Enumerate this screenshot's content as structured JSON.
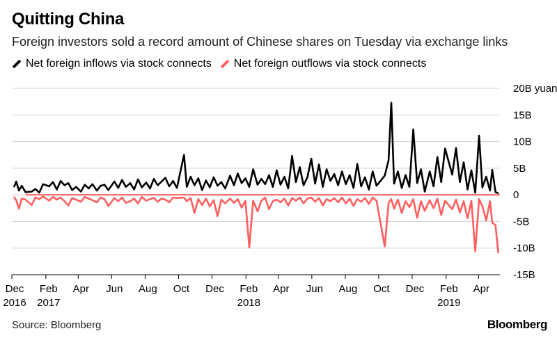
{
  "header": {
    "title": "Quitting China",
    "subtitle": "Foreign investors sold a record amount of Chinese shares on Tuesday via exchange links"
  },
  "footer": {
    "source": "Source: Bloomberg",
    "brand": "Bloomberg"
  },
  "chart_data": {
    "type": "line",
    "title": "Quitting China",
    "subtitle": "Foreign investors sold a record amount of Chinese shares on Tuesday via exchange links",
    "x_range": [
      "2016-12-01",
      "2019-05-10"
    ],
    "ylim": [
      -15,
      20
    ],
    "y_ticks": [
      {
        "value": 20,
        "label": "20B yuan"
      },
      {
        "value": 15,
        "label": "15B"
      },
      {
        "value": 10,
        "label": "10B"
      },
      {
        "value": 5,
        "label": "5B"
      },
      {
        "value": 0,
        "label": "0"
      },
      {
        "value": -5,
        "label": "-5B"
      },
      {
        "value": -10,
        "label": "-10B"
      },
      {
        "value": -15,
        "label": "-15B"
      }
    ],
    "x_ticks": [
      {
        "date": "2016-12-01",
        "label": "Dec",
        "year": "2016"
      },
      {
        "date": "2017-02-01",
        "label": "Feb",
        "year": "2017"
      },
      {
        "date": "2017-04-01",
        "label": "Apr",
        "year": ""
      },
      {
        "date": "2017-06-01",
        "label": "Jun",
        "year": ""
      },
      {
        "date": "2017-08-01",
        "label": "Aug",
        "year": ""
      },
      {
        "date": "2017-10-01",
        "label": "Oct",
        "year": ""
      },
      {
        "date": "2017-12-01",
        "label": "Dec",
        "year": ""
      },
      {
        "date": "2018-02-01",
        "label": "Feb",
        "year": "2018"
      },
      {
        "date": "2018-04-01",
        "label": "Apr",
        "year": ""
      },
      {
        "date": "2018-06-01",
        "label": "Jun",
        "year": ""
      },
      {
        "date": "2018-08-01",
        "label": "Aug",
        "year": ""
      },
      {
        "date": "2018-10-01",
        "label": "Oct",
        "year": ""
      },
      {
        "date": "2018-12-01",
        "label": "Dec",
        "year": ""
      },
      {
        "date": "2019-02-01",
        "label": "Feb",
        "year": "2019"
      },
      {
        "date": "2019-04-01",
        "label": "Apr",
        "year": ""
      }
    ],
    "grid": true,
    "legend_placement": "top-left",
    "series": [
      {
        "name": "Net foreign inflows via stock connects",
        "color": "#000000",
        "points": [
          [
            "2016-12-05",
            1.5
          ],
          [
            "2016-12-09",
            2.5
          ],
          [
            "2016-12-14",
            0.8
          ],
          [
            "2016-12-19",
            1.7
          ],
          [
            "2016-12-26",
            0.5
          ],
          [
            "2017-01-06",
            0.6
          ],
          [
            "2017-01-13",
            1.1
          ],
          [
            "2017-01-20",
            0.4
          ],
          [
            "2017-01-27",
            2.0
          ],
          [
            "2017-02-07",
            1.6
          ],
          [
            "2017-02-14",
            2.4
          ],
          [
            "2017-02-21",
            1.0
          ],
          [
            "2017-02-28",
            2.6
          ],
          [
            "2017-03-07",
            1.8
          ],
          [
            "2017-03-14",
            2.2
          ],
          [
            "2017-03-21",
            0.9
          ],
          [
            "2017-03-28",
            1.5
          ],
          [
            "2017-04-06",
            0.6
          ],
          [
            "2017-04-13",
            1.9
          ],
          [
            "2017-04-20",
            1.2
          ],
          [
            "2017-04-27",
            2.0
          ],
          [
            "2017-05-05",
            0.8
          ],
          [
            "2017-05-12",
            1.7
          ],
          [
            "2017-05-19",
            1.9
          ],
          [
            "2017-05-26",
            0.9
          ],
          [
            "2017-06-06",
            2.5
          ],
          [
            "2017-06-13",
            1.3
          ],
          [
            "2017-06-20",
            2.8
          ],
          [
            "2017-06-27",
            1.5
          ],
          [
            "2017-07-05",
            2.2
          ],
          [
            "2017-07-12",
            1.0
          ],
          [
            "2017-07-19",
            2.9
          ],
          [
            "2017-07-26",
            1.4
          ],
          [
            "2017-08-03",
            2.3
          ],
          [
            "2017-08-10",
            1.2
          ],
          [
            "2017-08-17",
            3.0
          ],
          [
            "2017-08-24",
            1.8
          ],
          [
            "2017-08-31",
            2.5
          ],
          [
            "2017-09-07",
            3.2
          ],
          [
            "2017-09-14",
            1.6
          ],
          [
            "2017-09-21",
            2.6
          ],
          [
            "2017-09-28",
            1.3
          ],
          [
            "2017-10-11",
            7.5
          ],
          [
            "2017-10-16",
            1.5
          ],
          [
            "2017-10-23",
            3.4
          ],
          [
            "2017-10-30",
            1.8
          ],
          [
            "2017-11-06",
            3.1
          ],
          [
            "2017-11-13",
            0.9
          ],
          [
            "2017-11-20",
            2.7
          ],
          [
            "2017-11-27",
            1.4
          ],
          [
            "2017-12-04",
            3.3
          ],
          [
            "2017-12-11",
            1.7
          ],
          [
            "2017-12-18",
            2.4
          ],
          [
            "2017-12-25",
            1.2
          ],
          [
            "2018-01-03",
            3.6
          ],
          [
            "2018-01-10",
            1.8
          ],
          [
            "2018-01-17",
            4.0
          ],
          [
            "2018-01-24",
            2.2
          ],
          [
            "2018-01-31",
            3.1
          ],
          [
            "2018-02-07",
            1.5
          ],
          [
            "2018-02-14",
            4.8
          ],
          [
            "2018-02-22",
            1.9
          ],
          [
            "2018-03-01",
            3.0
          ],
          [
            "2018-03-08",
            2.0
          ],
          [
            "2018-03-15",
            3.7
          ],
          [
            "2018-03-22",
            1.5
          ],
          [
            "2018-03-29",
            4.6
          ],
          [
            "2018-04-05",
            1.9
          ],
          [
            "2018-04-12",
            3.4
          ],
          [
            "2018-04-19",
            1.2
          ],
          [
            "2018-04-26",
            7.3
          ],
          [
            "2018-05-03",
            2.4
          ],
          [
            "2018-05-10",
            5.2
          ],
          [
            "2018-05-17",
            1.8
          ],
          [
            "2018-05-24",
            3.3
          ],
          [
            "2018-05-31",
            6.8
          ],
          [
            "2018-06-07",
            2.1
          ],
          [
            "2018-06-14",
            5.7
          ],
          [
            "2018-06-21",
            1.5
          ],
          [
            "2018-06-28",
            4.8
          ],
          [
            "2018-07-05",
            2.6
          ],
          [
            "2018-07-12",
            3.9
          ],
          [
            "2018-07-19",
            1.8
          ],
          [
            "2018-07-26",
            4.4
          ],
          [
            "2018-08-02",
            2.0
          ],
          [
            "2018-08-09",
            3.7
          ],
          [
            "2018-08-16",
            1.3
          ],
          [
            "2018-08-23",
            5.8
          ],
          [
            "2018-08-30",
            1.6
          ],
          [
            "2018-09-06",
            3.3
          ],
          [
            "2018-09-13",
            1.0
          ],
          [
            "2018-09-20",
            4.4
          ],
          [
            "2018-09-27",
            1.7
          ],
          [
            "2018-10-12",
            3.6
          ],
          [
            "2018-10-19",
            6.5
          ],
          [
            "2018-10-24",
            17.3
          ],
          [
            "2018-10-29",
            2.1
          ],
          [
            "2018-11-05",
            4.4
          ],
          [
            "2018-11-12",
            1.3
          ],
          [
            "2018-11-19",
            3.7
          ],
          [
            "2018-11-26",
            1.5
          ],
          [
            "2018-12-03",
            12.3
          ],
          [
            "2018-12-10",
            2.2
          ],
          [
            "2018-12-17",
            4.8
          ],
          [
            "2018-12-24",
            0.6
          ],
          [
            "2019-01-02",
            4.4
          ],
          [
            "2019-01-09",
            1.6
          ],
          [
            "2019-01-16",
            7.1
          ],
          [
            "2019-01-23",
            2.4
          ],
          [
            "2019-01-30",
            8.7
          ],
          [
            "2019-02-12",
            3.8
          ],
          [
            "2019-02-19",
            8.8
          ],
          [
            "2019-02-26",
            2.4
          ],
          [
            "2019-03-05",
            6.1
          ],
          [
            "2019-03-12",
            1.0
          ],
          [
            "2019-03-19",
            4.6
          ],
          [
            "2019-03-26",
            0.4
          ],
          [
            "2019-04-02",
            11.1
          ],
          [
            "2019-04-08",
            1.4
          ],
          [
            "2019-04-15",
            3.4
          ],
          [
            "2019-04-22",
            0.8
          ],
          [
            "2019-04-26",
            4.7
          ],
          [
            "2019-05-02",
            0.5
          ],
          [
            "2019-05-07",
            0.3
          ]
        ]
      },
      {
        "name": "Net foreign outflows via stock connects",
        "color": "#ff5f5f",
        "points": [
          [
            "2016-12-05",
            -0.4
          ],
          [
            "2016-12-09",
            -1.0
          ],
          [
            "2016-12-14",
            -2.6
          ],
          [
            "2016-12-19",
            -0.7
          ],
          [
            "2016-12-26",
            -0.9
          ],
          [
            "2017-01-06",
            -1.9
          ],
          [
            "2017-01-13",
            -0.5
          ],
          [
            "2017-01-20",
            -0.8
          ],
          [
            "2017-01-27",
            -0.3
          ],
          [
            "2017-02-07",
            -1.1
          ],
          [
            "2017-02-14",
            -0.4
          ],
          [
            "2017-02-21",
            -0.9
          ],
          [
            "2017-02-28",
            -0.5
          ],
          [
            "2017-03-07",
            -1.2
          ],
          [
            "2017-03-14",
            -2.0
          ],
          [
            "2017-03-21",
            -0.6
          ],
          [
            "2017-03-28",
            -0.9
          ],
          [
            "2017-04-06",
            -1.3
          ],
          [
            "2017-04-13",
            -0.4
          ],
          [
            "2017-04-20",
            -0.7
          ],
          [
            "2017-04-27",
            -1.0
          ],
          [
            "2017-05-05",
            -1.4
          ],
          [
            "2017-05-12",
            -0.5
          ],
          [
            "2017-05-19",
            -0.8
          ],
          [
            "2017-05-26",
            -2.1
          ],
          [
            "2017-06-06",
            -0.6
          ],
          [
            "2017-06-13",
            -1.2
          ],
          [
            "2017-06-20",
            -0.5
          ],
          [
            "2017-06-27",
            -1.5
          ],
          [
            "2017-07-05",
            -1.2
          ],
          [
            "2017-07-12",
            -0.7
          ],
          [
            "2017-07-19",
            -1.6
          ],
          [
            "2017-07-26",
            -0.4
          ],
          [
            "2017-08-03",
            -1.1
          ],
          [
            "2017-08-10",
            -0.8
          ],
          [
            "2017-08-17",
            -0.6
          ],
          [
            "2017-08-24",
            -1.3
          ],
          [
            "2017-08-31",
            -0.7
          ],
          [
            "2017-09-07",
            -0.9
          ],
          [
            "2017-09-14",
            -1.4
          ],
          [
            "2017-09-21",
            -0.5
          ],
          [
            "2017-09-28",
            -0.6
          ],
          [
            "2017-10-11",
            -0.5
          ],
          [
            "2017-10-16",
            -1.2
          ],
          [
            "2017-10-23",
            -0.6
          ],
          [
            "2017-10-30",
            -3.4
          ],
          [
            "2017-11-06",
            -0.8
          ],
          [
            "2017-11-13",
            -1.9
          ],
          [
            "2017-11-20",
            -0.7
          ],
          [
            "2017-11-27",
            -2.2
          ],
          [
            "2017-12-04",
            -1.0
          ],
          [
            "2017-12-11",
            -4.0
          ],
          [
            "2017-12-18",
            -0.9
          ],
          [
            "2017-12-25",
            -1.6
          ],
          [
            "2018-01-03",
            -0.7
          ],
          [
            "2018-01-10",
            -1.5
          ],
          [
            "2018-01-17",
            -0.8
          ],
          [
            "2018-01-24",
            -2.4
          ],
          [
            "2018-01-31",
            -1.1
          ],
          [
            "2018-02-07",
            -9.9
          ],
          [
            "2018-02-14",
            -1.1
          ],
          [
            "2018-02-22",
            -3.1
          ],
          [
            "2018-03-01",
            -1.1
          ],
          [
            "2018-03-08",
            -0.5
          ],
          [
            "2018-03-15",
            -2.7
          ],
          [
            "2018-03-22",
            -1.2
          ],
          [
            "2018-03-29",
            -0.9
          ],
          [
            "2018-04-05",
            -1.4
          ],
          [
            "2018-04-12",
            -0.7
          ],
          [
            "2018-04-19",
            -2.0
          ],
          [
            "2018-04-26",
            -0.6
          ],
          [
            "2018-05-03",
            -1.1
          ],
          [
            "2018-05-10",
            -0.5
          ],
          [
            "2018-05-17",
            -1.6
          ],
          [
            "2018-05-24",
            -0.7
          ],
          [
            "2018-05-31",
            -0.5
          ],
          [
            "2018-06-07",
            -1.3
          ],
          [
            "2018-06-14",
            -0.6
          ],
          [
            "2018-06-21",
            -2.0
          ],
          [
            "2018-06-28",
            -0.8
          ],
          [
            "2018-07-05",
            -1.2
          ],
          [
            "2018-07-12",
            -0.6
          ],
          [
            "2018-07-19",
            -1.4
          ],
          [
            "2018-07-26",
            -0.5
          ],
          [
            "2018-08-02",
            -1.6
          ],
          [
            "2018-08-09",
            -0.7
          ],
          [
            "2018-08-16",
            -2.1
          ],
          [
            "2018-08-23",
            -0.8
          ],
          [
            "2018-08-30",
            -1.3
          ],
          [
            "2018-09-06",
            -0.6
          ],
          [
            "2018-09-13",
            -1.7
          ],
          [
            "2018-09-20",
            -0.5
          ],
          [
            "2018-09-27",
            -1.1
          ],
          [
            "2018-10-12",
            -9.7
          ],
          [
            "2018-10-19",
            -1.5
          ],
          [
            "2018-10-24",
            -0.8
          ],
          [
            "2018-10-29",
            -2.6
          ],
          [
            "2018-11-05",
            -0.9
          ],
          [
            "2018-11-12",
            -3.4
          ],
          [
            "2018-11-19",
            -1.2
          ],
          [
            "2018-11-26",
            -2.3
          ],
          [
            "2018-12-03",
            -0.8
          ],
          [
            "2018-12-10",
            -4.3
          ],
          [
            "2018-12-17",
            -1.2
          ],
          [
            "2018-12-24",
            -3.0
          ],
          [
            "2019-01-02",
            -1.0
          ],
          [
            "2019-01-09",
            -2.5
          ],
          [
            "2019-01-16",
            -0.7
          ],
          [
            "2019-01-23",
            -3.8
          ],
          [
            "2019-01-30",
            -1.1
          ],
          [
            "2019-02-12",
            -2.7
          ],
          [
            "2019-02-19",
            -0.9
          ],
          [
            "2019-02-26",
            -3.3
          ],
          [
            "2019-03-05",
            -1.2
          ],
          [
            "2019-03-12",
            -4.4
          ],
          [
            "2019-03-19",
            -1.1
          ],
          [
            "2019-03-26",
            -10.6
          ],
          [
            "2019-04-02",
            -0.8
          ],
          [
            "2019-04-08",
            -2.1
          ],
          [
            "2019-04-15",
            -4.8
          ],
          [
            "2019-04-22",
            -1.2
          ],
          [
            "2019-04-26",
            -5.2
          ],
          [
            "2019-05-02",
            -5.7
          ],
          [
            "2019-05-07",
            -10.9
          ]
        ]
      }
    ]
  }
}
